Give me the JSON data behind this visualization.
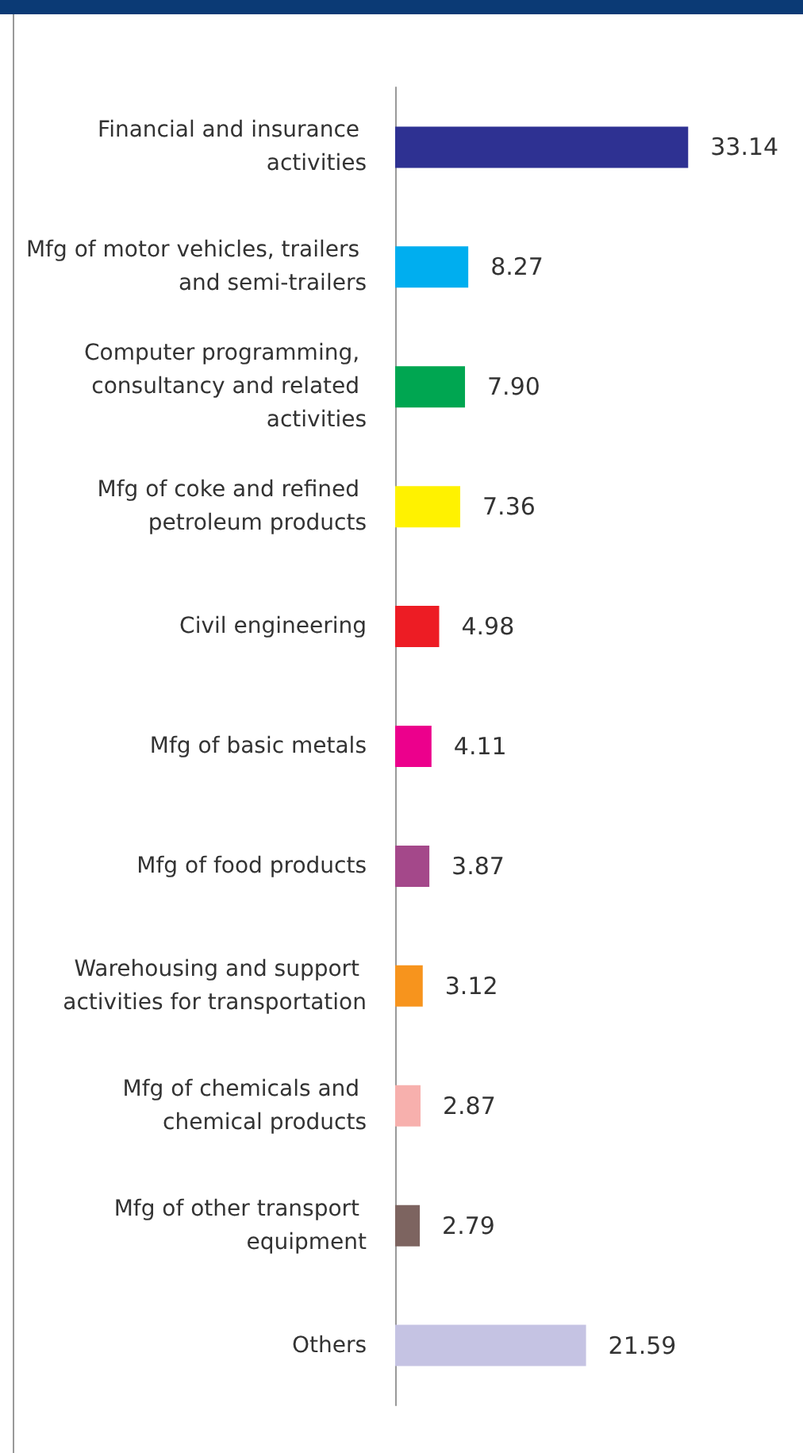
{
  "chart_data": {
    "type": "bar",
    "orientation": "horizontal",
    "data_labels": true,
    "categories": [
      "Financial and insurance activities",
      "Mfg of motor vehicles, trailers and semi-trailers",
      "Computer programming, consultancy and related activities",
      "Mfg of coke and refined petroleum products",
      "Civil engineering",
      "Mfg of basic metals",
      "Mfg of food products",
      "Warehousing and support activities for transportation",
      "Mfg of chemicals and chemical products",
      "Mfg of other transport equipment",
      "Others"
    ],
    "values": [
      33.14,
      8.27,
      7.9,
      7.36,
      4.98,
      4.11,
      3.87,
      3.12,
      2.87,
      2.79,
      21.59
    ],
    "colors": [
      "#2e3192",
      "#00aeef",
      "#00a651",
      "#fff200",
      "#ed1c24",
      "#ec008c",
      "#a4488a",
      "#f7941d",
      "#f7b0ad",
      "#7d6460",
      "#c5c3e3"
    ],
    "value_labels": [
      "33.14",
      "8.27",
      "7.90",
      "7.36",
      "4.98",
      "4.11",
      "3.87",
      "3.12",
      "2.87",
      "2.79",
      "21.59"
    ]
  }
}
